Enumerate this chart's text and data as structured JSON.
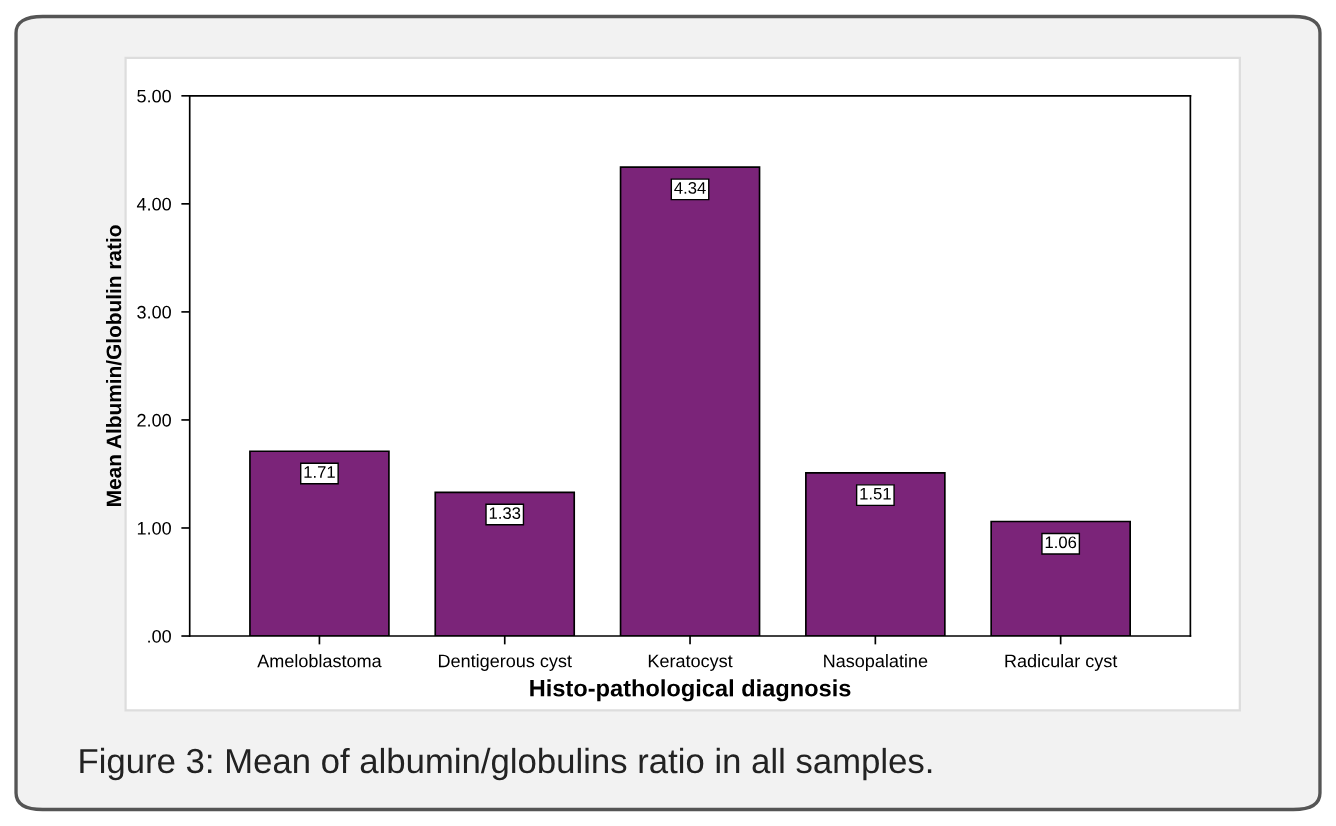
{
  "chart_data": {
    "type": "bar",
    "xlabel": "Histo-pathological diagnosis",
    "ylabel": "Mean Albumin/Globulin ratio",
    "categories": [
      "Ameloblastoma",
      "Dentigerous cyst",
      "Keratocyst",
      "Nasopalatine",
      "Radicular cyst"
    ],
    "values": [
      1.71,
      1.33,
      4.34,
      1.51,
      1.06
    ],
    "color": "#7b2479",
    "data_labels": true,
    "ylim": [
      0,
      5
    ],
    "yticks": [
      {
        "value": 0,
        "label": ".00"
      },
      {
        "value": 1,
        "label": "1.00"
      },
      {
        "value": 2,
        "label": "2.00"
      },
      {
        "value": 3,
        "label": "3.00"
      },
      {
        "value": 4,
        "label": "4.00"
      },
      {
        "value": 5,
        "label": "5.00"
      }
    ],
    "grid": false,
    "annotations": [
      "Figure 3: Mean of albumin/globulins ratio in all samples."
    ]
  }
}
